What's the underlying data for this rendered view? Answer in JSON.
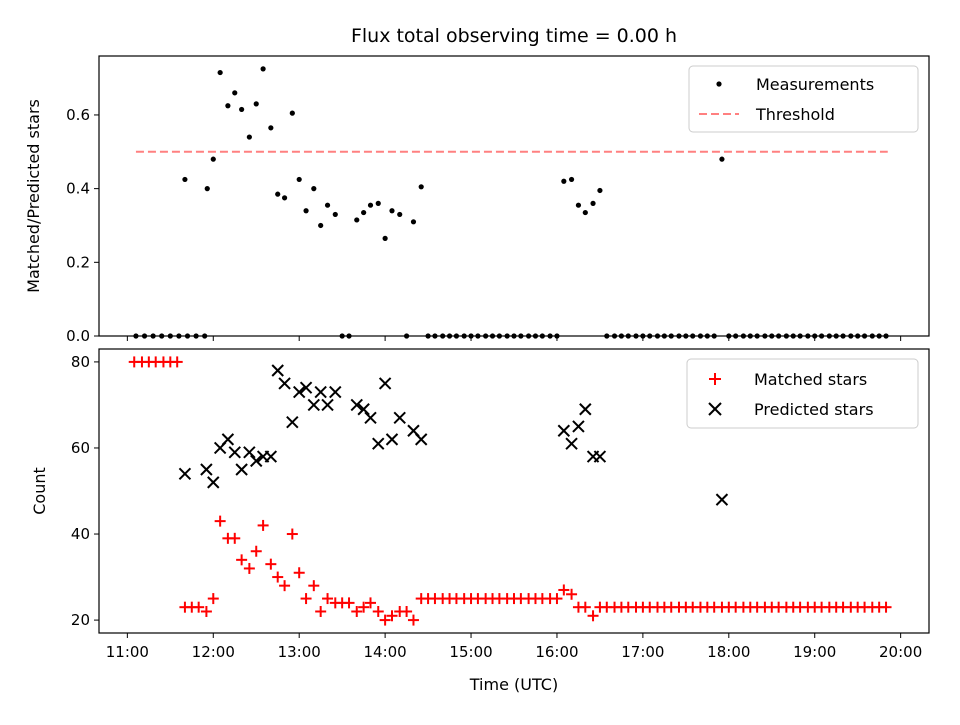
{
  "chart_data": [
    {
      "type": "scatter",
      "title": "Flux total observing time = 0.00 h",
      "ylabel": "Matched/Predicted stars",
      "ylim": [
        0,
        0.76
      ],
      "yticks": [
        0.0,
        0.2,
        0.4,
        0.6
      ],
      "ytick_labels": [
        "0.0",
        "0.2",
        "0.4",
        "0.6"
      ],
      "xlim": [
        10.67,
        20.33
      ],
      "legend": "top-right",
      "threshold": {
        "name": "Threshold",
        "value": 0.5,
        "x_range": [
          11.1,
          19.85
        ],
        "color": "#ff8080",
        "style": "dashed"
      },
      "series": [
        {
          "name": "Measurements",
          "marker": "dot",
          "color": "#000000",
          "points": [
            [
              11.1,
              0
            ],
            [
              11.2,
              0
            ],
            [
              11.3,
              0
            ],
            [
              11.4,
              0
            ],
            [
              11.5,
              0
            ],
            [
              11.6,
              0
            ],
            [
              11.7,
              0
            ],
            [
              11.8,
              0
            ],
            [
              11.9,
              0
            ],
            [
              11.67,
              0.425
            ],
            [
              11.93,
              0.4
            ],
            [
              12.0,
              0.48
            ],
            [
              12.08,
              0.715
            ],
            [
              12.17,
              0.625
            ],
            [
              12.25,
              0.66
            ],
            [
              12.33,
              0.615
            ],
            [
              12.42,
              0.54
            ],
            [
              12.5,
              0.63
            ],
            [
              12.58,
              0.725
            ],
            [
              12.67,
              0.565
            ],
            [
              12.75,
              0.385
            ],
            [
              12.83,
              0.375
            ],
            [
              12.92,
              0.605
            ],
            [
              13.0,
              0.425
            ],
            [
              13.08,
              0.34
            ],
            [
              13.17,
              0.4
            ],
            [
              13.25,
              0.3
            ],
            [
              13.33,
              0.355
            ],
            [
              13.42,
              0.33
            ],
            [
              13.5,
              0
            ],
            [
              13.58,
              0
            ],
            [
              13.67,
              0.315
            ],
            [
              13.75,
              0.335
            ],
            [
              13.83,
              0.355
            ],
            [
              13.92,
              0.36
            ],
            [
              14.0,
              0.265
            ],
            [
              14.08,
              0.34
            ],
            [
              14.17,
              0.33
            ],
            [
              14.25,
              0
            ],
            [
              14.33,
              0.31
            ],
            [
              14.42,
              0.405
            ],
            [
              14.5,
              0
            ],
            [
              14.58,
              0
            ],
            [
              14.67,
              0
            ],
            [
              14.75,
              0
            ],
            [
              14.83,
              0
            ],
            [
              14.92,
              0
            ],
            [
              15.0,
              0
            ],
            [
              15.08,
              0
            ],
            [
              15.17,
              0
            ],
            [
              15.25,
              0
            ],
            [
              15.33,
              0
            ],
            [
              15.42,
              0
            ],
            [
              15.5,
              0
            ],
            [
              15.58,
              0
            ],
            [
              15.67,
              0
            ],
            [
              15.75,
              0
            ],
            [
              15.83,
              0
            ],
            [
              15.92,
              0
            ],
            [
              16.0,
              0
            ],
            [
              16.08,
              0.42
            ],
            [
              16.17,
              0.425
            ],
            [
              16.25,
              0.355
            ],
            [
              16.33,
              0.335
            ],
            [
              16.42,
              0.36
            ],
            [
              16.5,
              0.395
            ],
            [
              16.58,
              0
            ],
            [
              16.67,
              0
            ],
            [
              16.75,
              0
            ],
            [
              16.83,
              0
            ],
            [
              16.92,
              0
            ],
            [
              17.0,
              0
            ],
            [
              17.08,
              0
            ],
            [
              17.17,
              0
            ],
            [
              17.25,
              0
            ],
            [
              17.33,
              0
            ],
            [
              17.42,
              0
            ],
            [
              17.5,
              0
            ],
            [
              17.58,
              0
            ],
            [
              17.67,
              0
            ],
            [
              17.75,
              0
            ],
            [
              17.83,
              0
            ],
            [
              17.92,
              0.48
            ],
            [
              18.0,
              0
            ],
            [
              18.08,
              0
            ],
            [
              18.17,
              0
            ],
            [
              18.25,
              0
            ],
            [
              18.33,
              0
            ],
            [
              18.42,
              0
            ],
            [
              18.5,
              0
            ],
            [
              18.58,
              0
            ],
            [
              18.67,
              0
            ],
            [
              18.75,
              0
            ],
            [
              18.83,
              0
            ],
            [
              18.92,
              0
            ],
            [
              19.0,
              0
            ],
            [
              19.08,
              0
            ],
            [
              19.17,
              0
            ],
            [
              19.25,
              0
            ],
            [
              19.33,
              0
            ],
            [
              19.42,
              0
            ],
            [
              19.5,
              0
            ],
            [
              19.58,
              0
            ],
            [
              19.67,
              0
            ],
            [
              19.75,
              0
            ],
            [
              19.83,
              0
            ]
          ]
        }
      ],
      "legend_entries": [
        "Measurements",
        "Threshold"
      ]
    },
    {
      "type": "scatter",
      "xlabel": "Time (UTC)",
      "ylabel": "Count",
      "ylim": [
        17,
        83
      ],
      "yticks": [
        20,
        40,
        60,
        80
      ],
      "ytick_labels": [
        "20",
        "40",
        "60",
        "80"
      ],
      "xlim": [
        10.67,
        20.33
      ],
      "xticks": [
        11,
        12,
        13,
        14,
        15,
        16,
        17,
        18,
        19,
        20
      ],
      "xtick_labels": [
        "11:00",
        "12:00",
        "13:00",
        "14:00",
        "15:00",
        "16:00",
        "17:00",
        "18:00",
        "19:00",
        "20:00"
      ],
      "legend": "top-right",
      "series": [
        {
          "name": "Matched stars",
          "marker": "plus",
          "color": "#ff0000",
          "points": [
            [
              11.08,
              80
            ],
            [
              11.17,
              80
            ],
            [
              11.25,
              80
            ],
            [
              11.33,
              80
            ],
            [
              11.42,
              80
            ],
            [
              11.5,
              80
            ],
            [
              11.58,
              80
            ],
            [
              11.67,
              23
            ],
            [
              11.75,
              23
            ],
            [
              11.83,
              23
            ],
            [
              11.92,
              22
            ],
            [
              12.0,
              25
            ],
            [
              12.08,
              43
            ],
            [
              12.17,
              39
            ],
            [
              12.25,
              39
            ],
            [
              12.33,
              34
            ],
            [
              12.42,
              32
            ],
            [
              12.5,
              36
            ],
            [
              12.58,
              42
            ],
            [
              12.67,
              33
            ],
            [
              12.75,
              30
            ],
            [
              12.83,
              28
            ],
            [
              12.92,
              40
            ],
            [
              13.0,
              31
            ],
            [
              13.08,
              25
            ],
            [
              13.17,
              28
            ],
            [
              13.25,
              22
            ],
            [
              13.33,
              25
            ],
            [
              13.42,
              24
            ],
            [
              13.5,
              24
            ],
            [
              13.58,
              24
            ],
            [
              13.67,
              22
            ],
            [
              13.75,
              23
            ],
            [
              13.83,
              24
            ],
            [
              13.92,
              22
            ],
            [
              14.0,
              20
            ],
            [
              14.08,
              21
            ],
            [
              14.17,
              22
            ],
            [
              14.25,
              22
            ],
            [
              14.33,
              20
            ],
            [
              14.42,
              25
            ],
            [
              14.5,
              25
            ],
            [
              14.58,
              25
            ],
            [
              14.67,
              25
            ],
            [
              14.75,
              25
            ],
            [
              14.83,
              25
            ],
            [
              14.92,
              25
            ],
            [
              15.0,
              25
            ],
            [
              15.08,
              25
            ],
            [
              15.17,
              25
            ],
            [
              15.25,
              25
            ],
            [
              15.33,
              25
            ],
            [
              15.42,
              25
            ],
            [
              15.5,
              25
            ],
            [
              15.58,
              25
            ],
            [
              15.67,
              25
            ],
            [
              15.75,
              25
            ],
            [
              15.83,
              25
            ],
            [
              15.92,
              25
            ],
            [
              16.0,
              25
            ],
            [
              16.08,
              27
            ],
            [
              16.17,
              26
            ],
            [
              16.25,
              23
            ],
            [
              16.33,
              23
            ],
            [
              16.42,
              21
            ],
            [
              16.5,
              23
            ],
            [
              16.58,
              23
            ],
            [
              16.67,
              23
            ],
            [
              16.75,
              23
            ],
            [
              16.83,
              23
            ],
            [
              16.92,
              23
            ],
            [
              17.0,
              23
            ],
            [
              17.08,
              23
            ],
            [
              17.17,
              23
            ],
            [
              17.25,
              23
            ],
            [
              17.33,
              23
            ],
            [
              17.42,
              23
            ],
            [
              17.5,
              23
            ],
            [
              17.58,
              23
            ],
            [
              17.67,
              23
            ],
            [
              17.75,
              23
            ],
            [
              17.83,
              23
            ],
            [
              17.92,
              23
            ],
            [
              18.0,
              23
            ],
            [
              18.08,
              23
            ],
            [
              18.17,
              23
            ],
            [
              18.25,
              23
            ],
            [
              18.33,
              23
            ],
            [
              18.42,
              23
            ],
            [
              18.5,
              23
            ],
            [
              18.58,
              23
            ],
            [
              18.67,
              23
            ],
            [
              18.75,
              23
            ],
            [
              18.83,
              23
            ],
            [
              18.92,
              23
            ],
            [
              19.0,
              23
            ],
            [
              19.08,
              23
            ],
            [
              19.17,
              23
            ],
            [
              19.25,
              23
            ],
            [
              19.33,
              23
            ],
            [
              19.42,
              23
            ],
            [
              19.5,
              23
            ],
            [
              19.58,
              23
            ],
            [
              19.67,
              23
            ],
            [
              19.75,
              23
            ],
            [
              19.83,
              23
            ]
          ]
        },
        {
          "name": "Predicted stars",
          "marker": "x",
          "color": "#000000",
          "points": [
            [
              11.67,
              54
            ],
            [
              11.92,
              55
            ],
            [
              12.0,
              52
            ],
            [
              12.08,
              60
            ],
            [
              12.17,
              62
            ],
            [
              12.25,
              59
            ],
            [
              12.33,
              55
            ],
            [
              12.42,
              59
            ],
            [
              12.5,
              57
            ],
            [
              12.58,
              58
            ],
            [
              12.67,
              58
            ],
            [
              12.75,
              78
            ],
            [
              12.83,
              75
            ],
            [
              12.92,
              66
            ],
            [
              13.0,
              73
            ],
            [
              13.08,
              74
            ],
            [
              13.17,
              70
            ],
            [
              13.25,
              73
            ],
            [
              13.33,
              70
            ],
            [
              13.42,
              73
            ],
            [
              13.67,
              70
            ],
            [
              13.75,
              69
            ],
            [
              13.83,
              67
            ],
            [
              13.92,
              61
            ],
            [
              14.0,
              75
            ],
            [
              14.08,
              62
            ],
            [
              14.17,
              67
            ],
            [
              14.33,
              64
            ],
            [
              14.42,
              62
            ],
            [
              16.08,
              64
            ],
            [
              16.17,
              61
            ],
            [
              16.25,
              65
            ],
            [
              16.33,
              69
            ],
            [
              16.42,
              58
            ],
            [
              16.5,
              58
            ],
            [
              17.92,
              48
            ]
          ]
        }
      ],
      "legend_entries": [
        "Matched stars",
        "Predicted stars"
      ]
    }
  ]
}
